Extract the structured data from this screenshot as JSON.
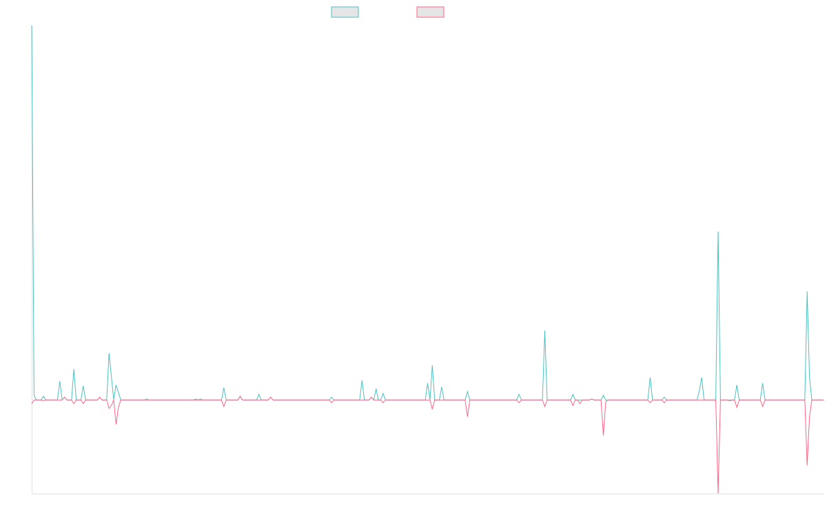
{
  "chart_data": {
    "type": "line",
    "title": "",
    "xlabel": "",
    "ylabel": "",
    "n_points": 339,
    "ylim": [
      -1,
      4
    ],
    "grid": false,
    "legend": {
      "position": "top",
      "entries": [
        "",
        ""
      ]
    },
    "series": [
      {
        "color": "#4bc0c0",
        "fill": "#e5e5e5",
        "points": [
          [
            0,
            4.0
          ],
          [
            1,
            0.05
          ],
          [
            5,
            0.04
          ],
          [
            12,
            0.2
          ],
          [
            14,
            0.03
          ],
          [
            18,
            0.33
          ],
          [
            22,
            0.15
          ],
          [
            29,
            0.03
          ],
          [
            33,
            0.5
          ],
          [
            34,
            0.25
          ],
          [
            36,
            0.16
          ],
          [
            37,
            0.08
          ],
          [
            49,
            0.01
          ],
          [
            70,
            0.01
          ],
          [
            72,
            0.01
          ],
          [
            82,
            0.13
          ],
          [
            89,
            0.04
          ],
          [
            97,
            0.06
          ],
          [
            102,
            0.03
          ],
          [
            128,
            0.03
          ],
          [
            141,
            0.21
          ],
          [
            145,
            0.03
          ],
          [
            147,
            0.12
          ],
          [
            150,
            0.07
          ],
          [
            169,
            0.18
          ],
          [
            171,
            0.37
          ],
          [
            175,
            0.14
          ],
          [
            186,
            0.09
          ],
          [
            208,
            0.06
          ],
          [
            219,
            0.74
          ],
          [
            231,
            0.06
          ],
          [
            239,
            0.01
          ],
          [
            244,
            0.05
          ],
          [
            264,
            0.24
          ],
          [
            270,
            0.03
          ],
          [
            285,
            0.1
          ],
          [
            286,
            0.24
          ],
          [
            293,
            1.8
          ],
          [
            301,
            0.16
          ],
          [
            312,
            0.18
          ],
          [
            331,
            1.16
          ],
          [
            332,
            0.24
          ]
        ]
      },
      {
        "color": "#ff6384",
        "fill": "#e5e5e5",
        "points": [
          [
            0,
            -0.04
          ],
          [
            5,
            -0.01
          ],
          [
            14,
            0.03
          ],
          [
            18,
            -0.04
          ],
          [
            22,
            -0.04
          ],
          [
            29,
            0.03
          ],
          [
            33,
            -0.09
          ],
          [
            34,
            -0.06
          ],
          [
            36,
            -0.26
          ],
          [
            37,
            -0.08
          ],
          [
            82,
            -0.07
          ],
          [
            89,
            0.04
          ],
          [
            102,
            0.03
          ],
          [
            128,
            -0.03
          ],
          [
            145,
            0.03
          ],
          [
            150,
            -0.03
          ],
          [
            171,
            -0.1
          ],
          [
            186,
            -0.18
          ],
          [
            208,
            -0.03
          ],
          [
            219,
            -0.07
          ],
          [
            231,
            -0.06
          ],
          [
            234,
            -0.04
          ],
          [
            239,
            0.01
          ],
          [
            244,
            -0.38
          ],
          [
            245,
            -0.02
          ],
          [
            264,
            -0.03
          ],
          [
            270,
            -0.03
          ],
          [
            293,
            -1.0
          ],
          [
            298,
            -0.01
          ],
          [
            301,
            -0.08
          ],
          [
            312,
            -0.07
          ],
          [
            331,
            -0.7
          ],
          [
            332,
            -0.18
          ]
        ]
      }
    ]
  }
}
